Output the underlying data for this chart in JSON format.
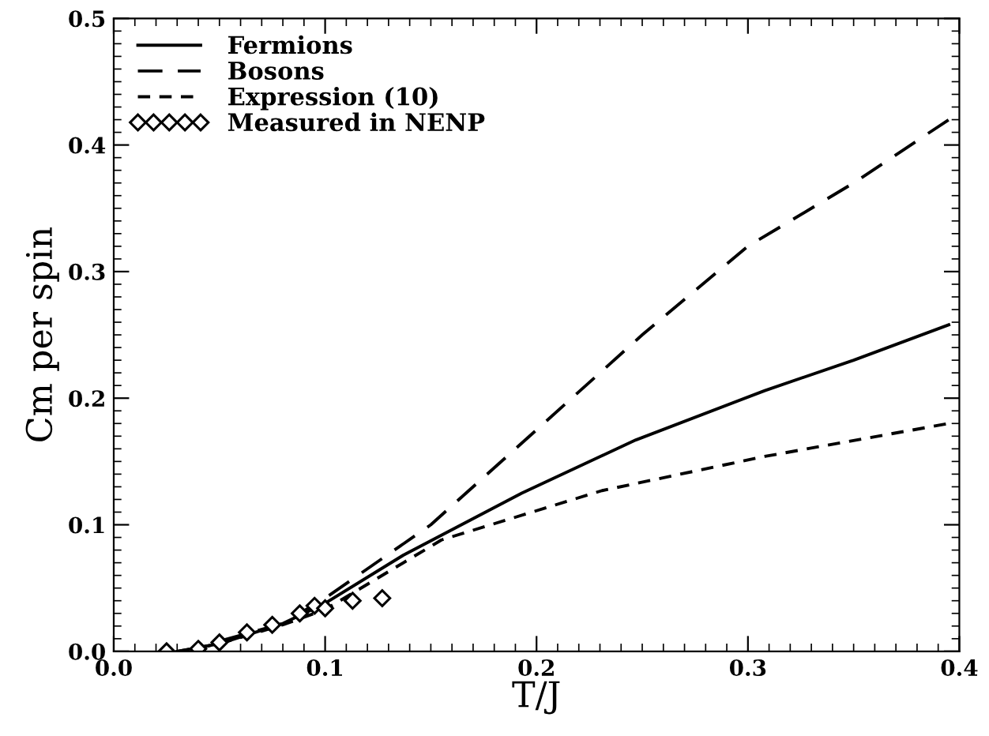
{
  "chart_data": {
    "type": "line",
    "xlabel": "T/J",
    "ylabel": "Cm per spin",
    "xlim": [
      0,
      0.4
    ],
    "ylim": [
      0,
      0.5
    ],
    "xticks": [
      {
        "value": 0,
        "label": "0.0"
      },
      0.1,
      0.2,
      0.3,
      0.4
    ],
    "yticks": [
      {
        "value": 0,
        "label": "0.0"
      },
      0.1,
      0.2,
      0.3,
      0.4,
      0.5
    ],
    "grid": false,
    "legend": "top left",
    "series": [
      {
        "name": "Fermions",
        "color": "#000000",
        "line_style": "solid",
        "marker": "none",
        "x": [
          0.03,
          0.05,
          0.08,
          0.1,
          0.137,
          0.193,
          0.247,
          0.308,
          0.35,
          0.395
        ],
        "values": [
          0.0,
          0.006,
          0.022,
          0.038,
          0.076,
          0.125,
          0.167,
          0.206,
          0.23,
          0.258
        ]
      },
      {
        "name": "Bosons",
        "color": "#000000",
        "line_style": "dashed",
        "marker": "none",
        "x": [
          0.05,
          0.08,
          0.1,
          0.15,
          0.2,
          0.25,
          0.3,
          0.35,
          0.395
        ],
        "values": [
          0.008,
          0.022,
          0.042,
          0.1,
          0.175,
          0.25,
          0.32,
          0.37,
          0.42
        ]
      },
      {
        "name": "Expression (10)",
        "color": "#000000",
        "line_style": "dotted",
        "marker": "none",
        "x": [
          0.03,
          0.05,
          0.08,
          0.1,
          0.155,
          0.231,
          0.308,
          0.395
        ],
        "values": [
          0.0,
          0.006,
          0.021,
          0.033,
          0.088,
          0.127,
          0.154,
          0.18
        ]
      },
      {
        "name": "Measured in NENP",
        "type": "scatter",
        "color": "#000000",
        "marker": "diamond",
        "x": [
          0.025,
          0.04,
          0.05,
          0.063,
          0.075,
          0.088,
          0.095,
          0.1,
          0.113,
          0.127
        ],
        "values": [
          0.0,
          0.002,
          0.007,
          0.015,
          0.021,
          0.03,
          0.036,
          0.034,
          0.04,
          0.042
        ]
      }
    ]
  }
}
